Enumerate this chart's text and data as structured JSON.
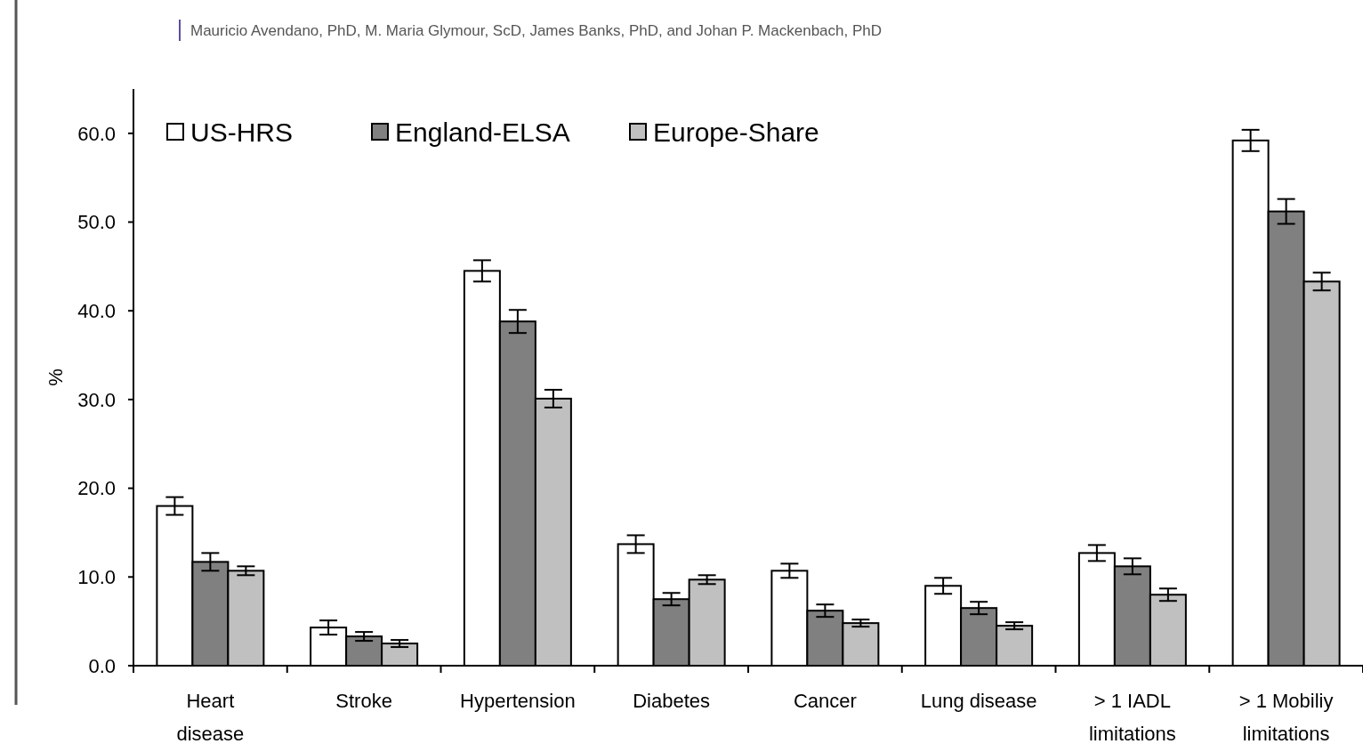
{
  "chart_data": {
    "type": "bar",
    "subtitle": "Mauricio Avendano, PhD, M. Maria Glymour, ScD, James Banks, PhD, and Johan P. Mackenbach, PhD",
    "ylabel": "%",
    "categories": [
      "Heart\ndisease",
      "Stroke",
      "Hypertension",
      "Diabetes",
      "Cancer",
      "Lung disease",
      "> 1 IADL\nlimitations",
      "> 1 Mobiliy\nlimitations"
    ],
    "series": [
      {
        "name": "US-HRS",
        "color": "#ffffff",
        "values": [
          18.0,
          4.3,
          44.5,
          13.7,
          10.7,
          9.0,
          12.7,
          59.2
        ],
        "errors": [
          1.0,
          0.8,
          1.2,
          1.0,
          0.8,
          0.9,
          0.9,
          1.2
        ]
      },
      {
        "name": "England-ELSA",
        "color": "#808080",
        "values": [
          11.7,
          3.3,
          38.8,
          7.5,
          6.2,
          6.5,
          11.2,
          51.2
        ],
        "errors": [
          1.0,
          0.5,
          1.3,
          0.7,
          0.7,
          0.7,
          0.9,
          1.4
        ]
      },
      {
        "name": "Europe-Share",
        "color": "#c0c0c0",
        "values": [
          10.7,
          2.5,
          30.1,
          9.7,
          4.8,
          4.5,
          8.0,
          43.3
        ],
        "errors": [
          0.5,
          0.4,
          1.0,
          0.5,
          0.4,
          0.4,
          0.7,
          1.0
        ]
      }
    ],
    "ylim": [
      0,
      65
    ],
    "yticks": [
      {
        "value": 0,
        "label": "0.0"
      },
      {
        "value": 10,
        "label": "10.0"
      },
      {
        "value": 20,
        "label": "20.0"
      },
      {
        "value": 30,
        "label": "30.0"
      },
      {
        "value": 40,
        "label": "40.0"
      },
      {
        "value": 50,
        "label": "50.0"
      },
      {
        "value": 60,
        "label": "60.0"
      }
    ],
    "grid": false,
    "legend": "top left"
  }
}
